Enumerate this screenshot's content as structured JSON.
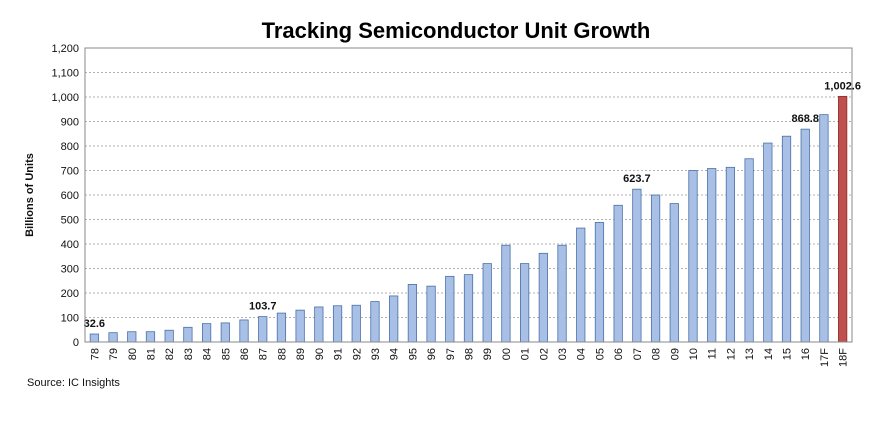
{
  "chart_data": {
    "type": "bar",
    "title": "Tracking Semiconductor Unit Growth",
    "ylabel": "Billions of Units",
    "xlabel": "",
    "ylim": [
      0,
      1200
    ],
    "yticks": [
      "0",
      "100",
      "200",
      "300",
      "400",
      "500",
      "600",
      "700",
      "800",
      "900",
      "1,000",
      "1,100",
      "1,200"
    ],
    "grid": true,
    "categories": [
      "78",
      "79",
      "80",
      "81",
      "82",
      "83",
      "84",
      "85",
      "86",
      "87",
      "88",
      "89",
      "90",
      "91",
      "92",
      "93",
      "94",
      "95",
      "96",
      "97",
      "98",
      "99",
      "00",
      "01",
      "02",
      "03",
      "04",
      "05",
      "06",
      "07",
      "08",
      "09",
      "10",
      "11",
      "12",
      "13",
      "14",
      "15",
      "16",
      "17F",
      "18F"
    ],
    "values": [
      32.6,
      38,
      42,
      42,
      48,
      60,
      75,
      78,
      90,
      103.7,
      118,
      130,
      143,
      148,
      150,
      165,
      188,
      235,
      228,
      268,
      275,
      320,
      395,
      320,
      362,
      395,
      465,
      488,
      558,
      623.7,
      600,
      565,
      700,
      708,
      713,
      748,
      812,
      840,
      868.8,
      928,
      1002.6
    ],
    "data_labels": [
      {
        "index": 0,
        "text": "32.6"
      },
      {
        "index": 9,
        "text": "103.7"
      },
      {
        "index": 29,
        "text": "623.7"
      },
      {
        "index": 38,
        "text": "868.8"
      },
      {
        "index": 40,
        "text": "1,002.6"
      }
    ],
    "colors": {
      "bar": "#a8c0e6",
      "bar_stroke": "#4a6fa8",
      "highlight": "#c0504d",
      "highlight_stroke": "#8c2d2a",
      "plot_bg": "#ffffff",
      "grid": "#999999"
    },
    "highlight_index": 40
  },
  "source": "Source:  IC Insights"
}
